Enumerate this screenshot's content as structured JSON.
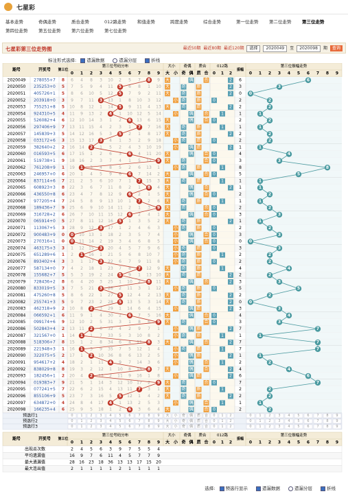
{
  "header": {
    "logo": "七星彩"
  },
  "nav": [
    "基本走势",
    "奇偶走势",
    "质合走势",
    "012路走势",
    "和值走势",
    "跨度走势",
    "综合走势",
    "第一位走势",
    "第二位走势",
    "第三位走势",
    "第四位走势",
    "第五位走势",
    "第六位走势",
    "第七位走势"
  ],
  "nav_active": 9,
  "title": "七星彩第三位走势图",
  "quick": [
    "最近50期",
    "最近80期",
    "最近120期"
  ],
  "select": {
    "label": "选择",
    "from": "2020049",
    "to_label": "至",
    "to": "2020098",
    "unit": "期",
    "button": "查询"
  },
  "options": {
    "label": "标注形式选择:",
    "items": [
      {
        "text": "遗漏数据",
        "type": "checkbox",
        "checked": true
      },
      {
        "text": "遗漏分层",
        "type": "radio",
        "checked": false
      },
      {
        "text": "折线",
        "type": "checkbox",
        "checked": true
      }
    ]
  },
  "table": {
    "headers": {
      "issue": "期号",
      "draw": "开奖号",
      "pos": "第三位",
      "dist": "第三位号码分布",
      "size": "大小",
      "parity": "奇偶",
      "prime": "质合",
      "road": "012路",
      "amp": "振幅",
      "ampdist": "第三位振幅走势"
    },
    "digits": [
      0,
      1,
      2,
      3,
      4,
      5,
      6,
      7,
      8,
      9
    ],
    "size": [
      "大",
      "小"
    ],
    "parity": [
      "奇",
      "偶"
    ],
    "prime": [
      "质",
      "合"
    ],
    "road": [
      "0",
      "1",
      "2"
    ],
    "rows": [
      {
        "issue": "2020049",
        "draw": "278055+7",
        "digit": 8,
        "miss": [
          6,
          4,
          8,
          3,
          10,
          2,
          5,
          7,
          null,
          9
        ],
        "amp": 6
      },
      {
        "issue": "2020050",
        "draw": "235253+0",
        "digit": 5,
        "miss": [
          7,
          5,
          9,
          4,
          11,
          null,
          6,
          8,
          1,
          10
        ],
        "amp": 3
      },
      {
        "issue": "2020051",
        "draw": "405726+1",
        "digit": 5,
        "miss": [
          8,
          6,
          10,
          5,
          12,
          null,
          7,
          9,
          2,
          11
        ],
        "amp": 0
      },
      {
        "issue": "2020052",
        "draw": "203918+0",
        "digit": 3,
        "miss": [
          9,
          7,
          11,
          null,
          13,
          1,
          8,
          10,
          3,
          12
        ],
        "amp": 2
      },
      {
        "issue": "2020053",
        "draw": "755251+8",
        "digit": 5,
        "miss": [
          10,
          8,
          12,
          1,
          14,
          null,
          9,
          11,
          4,
          13
        ],
        "amp": 2
      },
      {
        "issue": "2020054",
        "draw": "924310+5",
        "digit": 4,
        "miss": [
          11,
          9,
          13,
          2,
          null,
          1,
          10,
          12,
          5,
          14
        ],
        "amp": 1
      },
      {
        "issue": "2020055",
        "draw": "526082+4",
        "digit": 6,
        "miss": [
          12,
          10,
          14,
          3,
          1,
          2,
          null,
          13,
          6,
          15
        ],
        "amp": 2
      },
      {
        "issue": "2020056",
        "draw": "297406+9",
        "digit": 7,
        "miss": [
          13,
          11,
          15,
          4,
          2,
          3,
          1,
          null,
          7,
          16
        ],
        "amp": 1
      },
      {
        "issue": "2020057",
        "draw": "145839+3",
        "digit": 5,
        "miss": [
          14,
          12,
          16,
          5,
          3,
          null,
          2,
          1,
          8,
          17
        ],
        "amp": 2
      },
      {
        "issue": "2020058",
        "draw": "033172+6",
        "digit": 3,
        "miss": [
          15,
          13,
          17,
          null,
          4,
          1,
          3,
          2,
          9,
          18
        ],
        "amp": 2
      },
      {
        "issue": "2020059",
        "draw": "382640+2",
        "digit": 2,
        "miss": [
          16,
          14,
          null,
          1,
          5,
          2,
          4,
          3,
          10,
          19
        ],
        "amp": 1
      },
      {
        "issue": "2020060",
        "draw": "016593+5",
        "digit": 6,
        "miss": [
          17,
          15,
          1,
          2,
          6,
          3,
          null,
          4,
          11,
          20
        ],
        "amp": 4
      },
      {
        "issue": "2020061",
        "draw": "519738+1",
        "digit": 9,
        "miss": [
          18,
          16,
          2,
          3,
          7,
          4,
          1,
          5,
          12,
          null
        ],
        "amp": 3
      },
      {
        "issue": "2020062",
        "draw": "761208+9",
        "digit": 1,
        "miss": [
          19,
          null,
          3,
          4,
          8,
          5,
          2,
          6,
          13,
          1
        ],
        "amp": 8
      },
      {
        "issue": "2020063",
        "draw": "246957+0",
        "digit": 6,
        "miss": [
          20,
          1,
          4,
          5,
          9,
          6,
          null,
          7,
          14,
          2
        ],
        "amp": 5
      },
      {
        "issue": "2020064",
        "draw": "837114+6",
        "digit": 7,
        "miss": [
          21,
          2,
          5,
          6,
          10,
          7,
          1,
          null,
          15,
          3
        ],
        "amp": 1
      },
      {
        "issue": "2020065",
        "draw": "608923+3",
        "digit": 8,
        "miss": [
          22,
          3,
          6,
          7,
          11,
          8,
          2,
          1,
          null,
          4
        ],
        "amp": 1
      },
      {
        "issue": "2020066",
        "draw": "436550+8",
        "digit": 6,
        "miss": [
          23,
          4,
          7,
          8,
          12,
          9,
          null,
          2,
          1,
          5
        ],
        "amp": 2
      },
      {
        "issue": "2020067",
        "draw": "977205+4",
        "digit": 7,
        "miss": [
          24,
          5,
          8,
          9,
          13,
          10,
          1,
          null,
          2,
          6
        ],
        "amp": 1
      },
      {
        "issue": "2020068",
        "draw": "189436+7",
        "digit": 9,
        "miss": [
          25,
          6,
          9,
          10,
          14,
          11,
          2,
          1,
          3,
          null
        ],
        "amp": 2
      },
      {
        "issue": "2020069",
        "draw": "316728+2",
        "digit": 6,
        "miss": [
          26,
          7,
          10,
          11,
          15,
          12,
          null,
          2,
          4,
          1
        ],
        "amp": 3
      },
      {
        "issue": "2020070",
        "draw": "065914+0",
        "digit": 5,
        "miss": [
          27,
          8,
          11,
          12,
          16,
          null,
          1,
          3,
          5,
          2
        ],
        "amp": 1
      },
      {
        "issue": "2020071",
        "draw": "113067+5",
        "digit": 3,
        "miss": [
          28,
          9,
          12,
          null,
          17,
          1,
          2,
          4,
          6,
          3
        ],
        "amp": 2
      },
      {
        "issue": "2020072",
        "draw": "900483+9",
        "digit": 0,
        "miss": [
          null,
          10,
          13,
          1,
          18,
          2,
          3,
          5,
          7,
          4
        ],
        "amp": 3
      },
      {
        "issue": "2020073",
        "draw": "270316+1",
        "digit": 0,
        "miss": [
          null,
          11,
          14,
          2,
          19,
          3,
          4,
          6,
          8,
          5
        ],
        "amp": 0
      },
      {
        "issue": "2020074",
        "draw": "463175+3",
        "digit": 3,
        "miss": [
          1,
          12,
          15,
          null,
          20,
          4,
          5,
          7,
          9,
          6
        ],
        "amp": 3
      },
      {
        "issue": "2020075",
        "draw": "651289+6",
        "digit": 1,
        "miss": [
          2,
          null,
          16,
          1,
          21,
          5,
          6,
          8,
          10,
          7
        ],
        "amp": 2
      },
      {
        "issue": "2020076",
        "draw": "893402+4",
        "digit": 3,
        "miss": [
          3,
          1,
          17,
          null,
          22,
          6,
          7,
          9,
          11,
          8
        ],
        "amp": 2
      },
      {
        "issue": "2020077",
        "draw": "587134+0",
        "digit": 7,
        "miss": [
          4,
          2,
          18,
          1,
          23,
          7,
          8,
          null,
          12,
          9
        ],
        "amp": 4
      },
      {
        "issue": "2020078",
        "draw": "155682+7",
        "digit": 5,
        "miss": [
          5,
          3,
          19,
          2,
          24,
          null,
          9,
          1,
          13,
          10
        ],
        "amp": 2
      },
      {
        "issue": "2020079",
        "draw": "728436+2",
        "digit": 8,
        "miss": [
          6,
          4,
          20,
          3,
          25,
          1,
          10,
          2,
          null,
          11
        ],
        "amp": 3
      },
      {
        "issue": "2020080",
        "draw": "833019+5",
        "digit": 3,
        "miss": [
          7,
          5,
          21,
          null,
          26,
          2,
          11,
          3,
          1,
          12
        ],
        "amp": 5
      },
      {
        "issue": "2020081",
        "draw": "475260+8",
        "digit": 5,
        "miss": [
          8,
          6,
          22,
          1,
          27,
          null,
          12,
          4,
          2,
          13
        ],
        "amp": 2
      },
      {
        "issue": "2020082",
        "draw": "255741+3",
        "digit": 5,
        "miss": [
          9,
          7,
          23,
          2,
          28,
          null,
          13,
          5,
          3,
          14
        ],
        "amp": 0
      },
      {
        "issue": "2020083",
        "draw": "462318+9",
        "digit": 2,
        "miss": [
          10,
          8,
          null,
          3,
          29,
          1,
          14,
          6,
          4,
          15
        ],
        "amp": 3
      },
      {
        "issue": "2020084",
        "draw": "066592+1",
        "digit": 6,
        "miss": [
          11,
          9,
          1,
          4,
          30,
          2,
          null,
          7,
          5,
          16
        ],
        "amp": 4
      },
      {
        "issue": "2020085",
        "draw": "099174+6",
        "digit": 9,
        "miss": [
          12,
          10,
          2,
          5,
          31,
          3,
          1,
          8,
          6,
          null
        ],
        "amp": 3
      },
      {
        "issue": "2020086",
        "draw": "502843+4",
        "digit": 2,
        "miss": [
          13,
          11,
          null,
          6,
          32,
          4,
          2,
          9,
          7,
          1
        ],
        "amp": 7
      },
      {
        "issue": "2020087",
        "draw": "321567+0",
        "digit": 1,
        "miss": [
          14,
          null,
          1,
          7,
          33,
          5,
          3,
          10,
          8,
          2
        ],
        "amp": 1
      },
      {
        "issue": "2020088",
        "draw": "518306+7",
        "digit": 8,
        "miss": [
          15,
          1,
          2,
          8,
          34,
          6,
          4,
          11,
          null,
          3
        ],
        "amp": 7
      },
      {
        "issue": "2020089",
        "draw": "221948+3",
        "digit": 1,
        "miss": [
          16,
          null,
          3,
          9,
          35,
          7,
          5,
          12,
          1,
          4
        ],
        "amp": 7
      },
      {
        "issue": "2020090",
        "draw": "322075+5",
        "digit": 2,
        "miss": [
          17,
          1,
          null,
          10,
          36,
          8,
          6,
          13,
          2,
          5
        ],
        "amp": 1
      },
      {
        "issue": "2020091",
        "draw": "954617+2",
        "digit": 4,
        "miss": [
          18,
          2,
          1,
          11,
          null,
          9,
          7,
          14,
          3,
          6
        ],
        "amp": 2
      },
      {
        "issue": "2020092",
        "draw": "838029+8",
        "digit": 8,
        "miss": [
          19,
          3,
          2,
          12,
          1,
          10,
          8,
          15,
          null,
          7
        ],
        "amp": 4
      },
      {
        "issue": "2020093",
        "draw": "182456+1",
        "digit": 2,
        "miss": [
          20,
          4,
          null,
          13,
          2,
          11,
          9,
          16,
          1,
          8
        ],
        "amp": 6
      },
      {
        "issue": "2020094",
        "draw": "019383+7",
        "digit": 9,
        "miss": [
          21,
          5,
          1,
          14,
          3,
          12,
          10,
          17,
          2,
          null
        ],
        "amp": 7
      },
      {
        "issue": "2020095",
        "draw": "077241+5",
        "digit": 7,
        "miss": [
          22,
          6,
          2,
          15,
          4,
          13,
          11,
          null,
          3,
          1
        ],
        "amp": 2
      },
      {
        "issue": "2020096",
        "draw": "855106+9",
        "digit": 5,
        "miss": [
          23,
          7,
          3,
          16,
          5,
          null,
          12,
          1,
          4,
          2
        ],
        "amp": 2
      },
      {
        "issue": "2020097",
        "draw": "634872+0",
        "digit": 4,
        "miss": [
          24,
          8,
          4,
          17,
          null,
          1,
          13,
          2,
          5,
          3
        ],
        "amp": 1
      },
      {
        "issue": "2020098",
        "draw": "166235+4",
        "digit": 6,
        "miss": [
          25,
          9,
          5,
          18,
          1,
          2,
          null,
          3,
          6,
          4
        ],
        "amp": 2
      }
    ],
    "preselect": [
      "预选行1",
      "预选行2",
      "预选行3"
    ],
    "stats": [
      {
        "label": "出现总次数",
        "values": [
          2,
          4,
          5,
          6,
          3,
          9,
          7,
          5,
          5,
          4
        ]
      },
      {
        "label": "平均遗漏值",
        "values": [
          16,
          9,
          7,
          6,
          11,
          4,
          5,
          7,
          7,
          9
        ]
      },
      {
        "label": "最大遗漏值",
        "values": [
          28,
          16,
          23,
          18,
          36,
          13,
          13,
          17,
          15,
          20
        ]
      },
      {
        "label": "最大连出值",
        "values": [
          2,
          1,
          1,
          1,
          1,
          2,
          1,
          1,
          1,
          1
        ]
      }
    ]
  },
  "footer": {
    "label": "选择:",
    "items": [
      {
        "text": "预选行显示",
        "type": "checkbox",
        "checked": true
      },
      {
        "text": "遗漏数据",
        "type": "checkbox",
        "checked": true
      },
      {
        "text": "遗漏分层",
        "type": "radio",
        "checked": false
      },
      {
        "text": "折线",
        "type": "checkbox",
        "checked": true
      }
    ]
  }
}
